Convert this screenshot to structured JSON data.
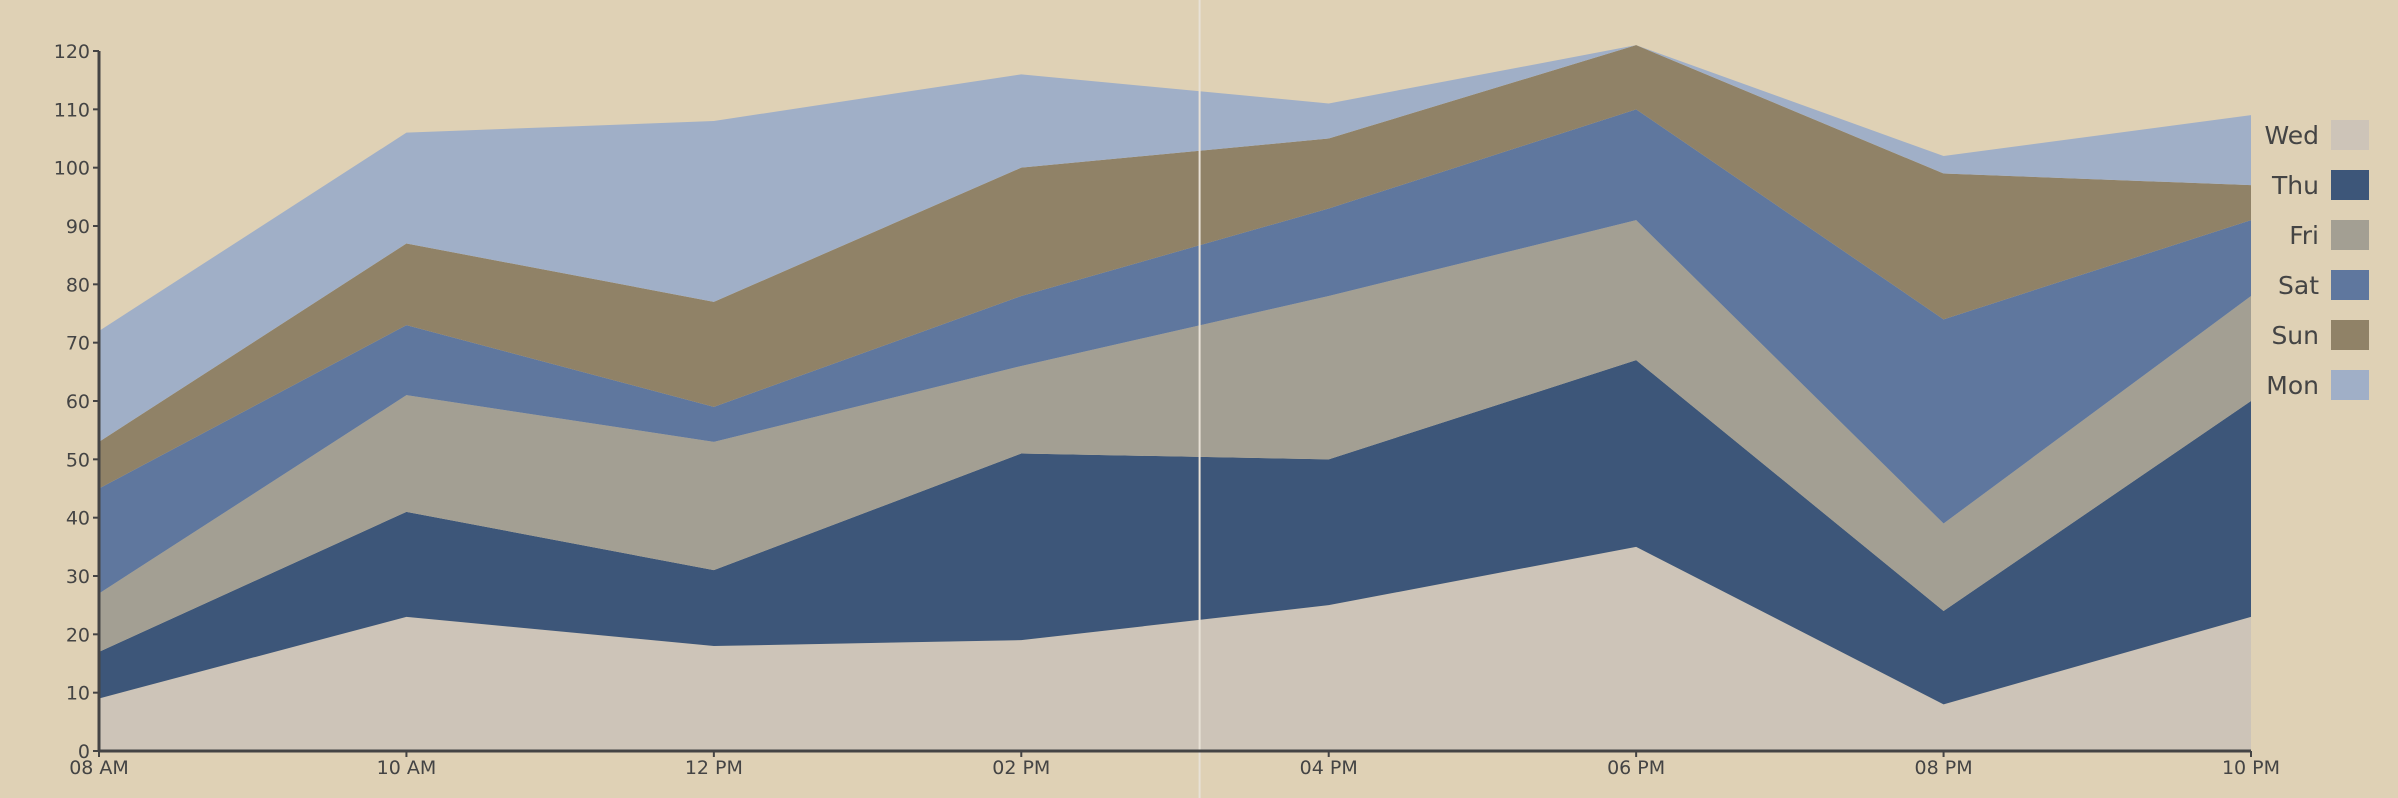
{
  "chart_data": {
    "type": "area",
    "stacked": true,
    "categories": [
      "08 AM",
      "10 AM",
      "12 PM",
      "02 PM",
      "04 PM",
      "06 PM",
      "08 PM",
      "10 PM"
    ],
    "ylim": [
      0,
      120
    ],
    "yticks": [
      0,
      10,
      20,
      30,
      40,
      50,
      60,
      70,
      80,
      90,
      100,
      110,
      120
    ],
    "legend_position": "right",
    "grid": false,
    "series": [
      {
        "name": "Wed",
        "color": "#cdc4b8",
        "values": [
          9,
          23,
          18,
          19,
          25,
          35,
          8,
          23
        ]
      },
      {
        "name": "Thu",
        "color": "#3d5679",
        "values": [
          8,
          18,
          13,
          32,
          25,
          32,
          16,
          37
        ]
      },
      {
        "name": "Fri",
        "color": "#a39f93",
        "values": [
          10,
          20,
          22,
          15,
          28,
          24,
          15,
          18
        ]
      },
      {
        "name": "Sat",
        "color": "#5f779e",
        "values": [
          18,
          12,
          6,
          12,
          15,
          19,
          35,
          13
        ]
      },
      {
        "name": "Sun",
        "color": "#908267",
        "values": [
          8,
          14,
          18,
          22,
          12,
          11,
          25,
          6
        ]
      },
      {
        "name": "Mon",
        "color": "#a0afc7",
        "values": [
          19,
          19,
          31,
          16,
          6,
          0,
          3,
          12
        ]
      }
    ],
    "cursor": {
      "x_between": [
        "02 PM",
        "04 PM"
      ],
      "fraction": 0.58
    }
  }
}
